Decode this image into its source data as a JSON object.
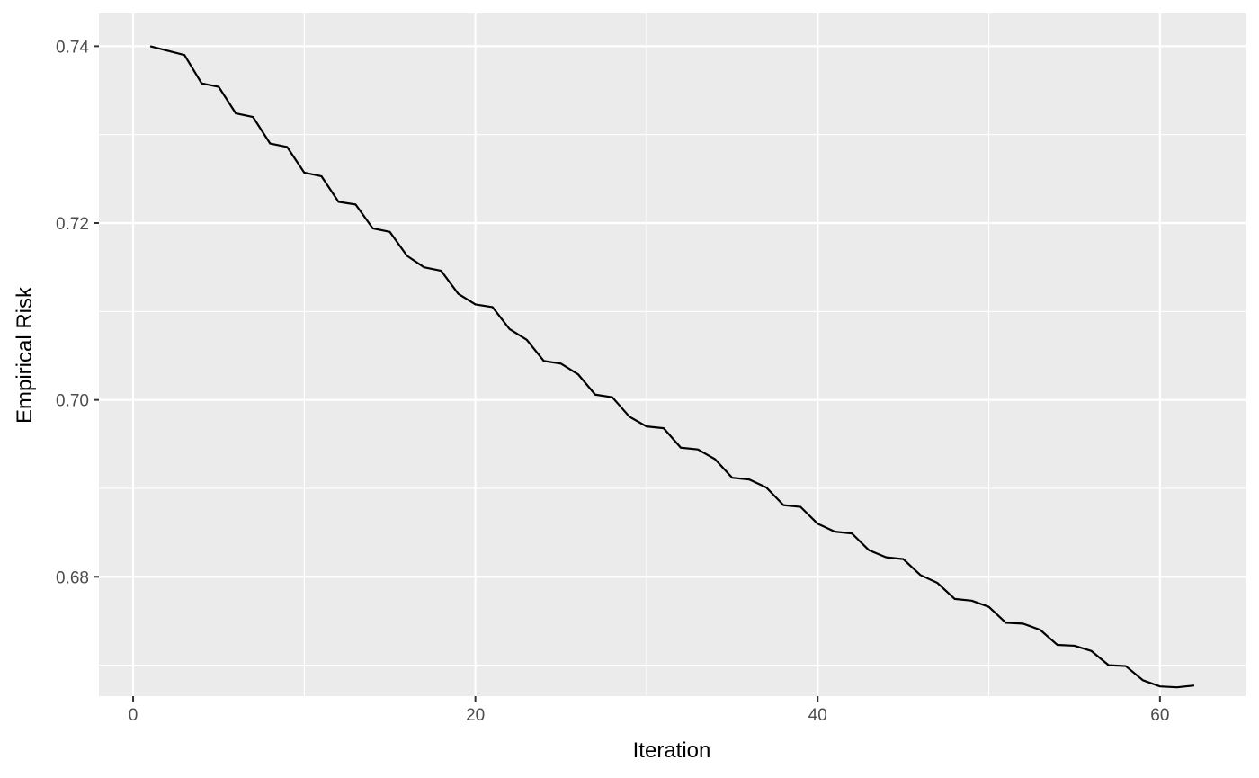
{
  "chart_data": {
    "type": "line",
    "title": "",
    "xlabel": "Iteration",
    "ylabel": "Empirical Risk",
    "xlim": [
      -2,
      65
    ],
    "ylim": [
      0.6665,
      0.7437
    ],
    "x_ticks": [
      0,
      20,
      40,
      60
    ],
    "x_tick_labels": [
      "0",
      "20",
      "40",
      "60"
    ],
    "x_minor_ticks": [
      10,
      30,
      50
    ],
    "y_ticks": [
      0.68,
      0.7,
      0.72,
      0.74
    ],
    "y_tick_labels": [
      "0.68",
      "0.70",
      "0.72",
      "0.74"
    ],
    "y_minor_ticks": [
      0.67,
      0.69,
      0.71,
      0.73
    ],
    "grid": true,
    "colors": {
      "panel": "#ebebeb",
      "grid": "#ffffff",
      "line": "#000000",
      "tick_text": "#4d4d4d",
      "tick_mark": "#333333"
    },
    "series": [
      {
        "x": [
          1,
          2,
          3,
          4,
          5,
          6,
          7,
          8,
          9,
          10,
          11,
          12,
          13,
          14,
          15,
          16,
          17,
          18,
          19,
          20,
          21,
          22,
          23,
          24,
          25,
          26,
          27,
          28,
          29,
          30,
          31,
          32,
          33,
          34,
          35,
          36,
          37,
          38,
          39,
          40,
          41,
          42,
          43,
          44,
          45,
          46,
          47,
          48,
          49,
          50,
          51,
          52,
          53,
          54,
          55,
          56,
          57,
          58,
          59,
          60,
          61,
          62
        ],
        "values": [
          0.74,
          0.7395,
          0.739,
          0.7358,
          0.7354,
          0.7324,
          0.732,
          0.729,
          0.7286,
          0.7257,
          0.7253,
          0.7224,
          0.7221,
          0.7194,
          0.719,
          0.7163,
          0.715,
          0.7146,
          0.712,
          0.7108,
          0.7105,
          0.708,
          0.7068,
          0.7044,
          0.7041,
          0.7029,
          0.7006,
          0.7003,
          0.6981,
          0.697,
          0.6968,
          0.6946,
          0.6944,
          0.6933,
          0.6912,
          0.691,
          0.6901,
          0.6881,
          0.6879,
          0.686,
          0.6851,
          0.6849,
          0.683,
          0.6822,
          0.682,
          0.6802,
          0.6793,
          0.6775,
          0.6773,
          0.6766,
          0.6748,
          0.6747,
          0.674,
          0.6723,
          0.6722,
          0.6716,
          0.67,
          0.6699,
          0.6683,
          0.6676,
          0.6675,
          0.6677
        ]
      }
    ]
  }
}
